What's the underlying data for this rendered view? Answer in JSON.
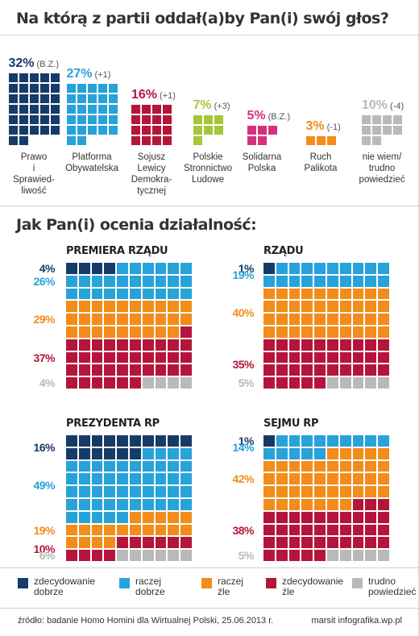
{
  "colors": {
    "navy": "#163b68",
    "blue": "#27a3d9",
    "orange": "#f28c1a",
    "crimson": "#b5153b",
    "gray": "#b9b9b9",
    "pink": "#d5307d",
    "lime": "#a7c53a"
  },
  "titles": {
    "votes": "Na którą z partii oddał(a)by Pan(i) swój głos?",
    "ratings": "Jak Pan(i) ocenia działalność:"
  },
  "chart_data": [
    {
      "type": "bar",
      "title": "Na którą z partii oddał(a)by Pan(i) swój głos?",
      "categories": [
        "Prawo i Sprawiedliwość",
        "Platforma Obywatelska",
        "Sojusz Lewicy Demokratycznej",
        "Polskie Stronnictwo Ludowe",
        "Solidarna Polska",
        "Ruch Palikota",
        "nie wiem/ trudno powiedzieć"
      ],
      "label_lines": [
        [
          "Prawo",
          "i",
          "Sprawied-",
          "liwość"
        ],
        [
          "Platforma",
          "Obywatelska"
        ],
        [
          "Sojusz",
          "Lewicy",
          "Demokra-",
          "tycznej"
        ],
        [
          "Polskie",
          "Stronnictwo",
          "Ludowe"
        ],
        [
          "Solidarna",
          "Polska"
        ],
        [
          "Ruch",
          "Palikota"
        ],
        [
          "nie wiem/",
          "trudno",
          "powiedzieć"
        ]
      ],
      "values": [
        32,
        27,
        16,
        7,
        5,
        3,
        10
      ],
      "value_labels": [
        "32%",
        "27%",
        "16%",
        "7%",
        "5%",
        "3%",
        "10%"
      ],
      "changes": [
        "(B.Z.)",
        "(+1)",
        "(+1)",
        "(+3)",
        "(B.Z.)",
        "(-1)",
        "(-4)"
      ],
      "colors": [
        "#163b68",
        "#27a3d9",
        "#b5153b",
        "#a7c53a",
        "#d5307d",
        "#f28c1a",
        "#b9b9b9"
      ]
    },
    {
      "type": "waffle",
      "title": "Jak Pan(i) ocenia działalność:",
      "categories": [
        "zdecydowanie dobrze",
        "raczej dobrze",
        "raczej źle",
        "zdecydowanie źle",
        "trudno powiedzieć"
      ],
      "panels": [
        {
          "name": "PREMIERA RZĄDU",
          "values": [
            4,
            26,
            29,
            37,
            4
          ],
          "labels": [
            "4%",
            "26%",
            "29%",
            "37%",
            "4%"
          ]
        },
        {
          "name": "RZĄDU",
          "values": [
            1,
            19,
            40,
            35,
            5
          ],
          "labels": [
            "1%",
            "19%",
            "40%",
            "35%",
            "5%"
          ]
        },
        {
          "name": "PREZYDENTA RP",
          "values": [
            16,
            49,
            19,
            10,
            6
          ],
          "labels": [
            "16%",
            "49%",
            "19%",
            "10%",
            "6%"
          ]
        },
        {
          "name": "SEJMU RP",
          "values": [
            1,
            14,
            42,
            38,
            5
          ],
          "labels": [
            "1%",
            "14%",
            "42%",
            "38%",
            "5%"
          ]
        }
      ]
    }
  ],
  "legend": [
    {
      "line1": "zdecydowanie",
      "line2": "dobrze",
      "color": "#163b68"
    },
    {
      "line1": "raczej",
      "line2": "dobrze",
      "color": "#27a3d9"
    },
    {
      "line1": "raczej",
      "line2": "źle",
      "color": "#f28c1a"
    },
    {
      "line1": "zdecydowanie",
      "line2": "źle",
      "color": "#b5153b"
    },
    {
      "line1": "trudno",
      "line2": "powiedzieć",
      "color": "#b9b9b9"
    }
  ],
  "footer": {
    "source": "źródło: badanie Homo Homini dla Wirtualnej Polski, 25.06.2013 r.",
    "credit": "marsit infografika.wp.pl"
  }
}
